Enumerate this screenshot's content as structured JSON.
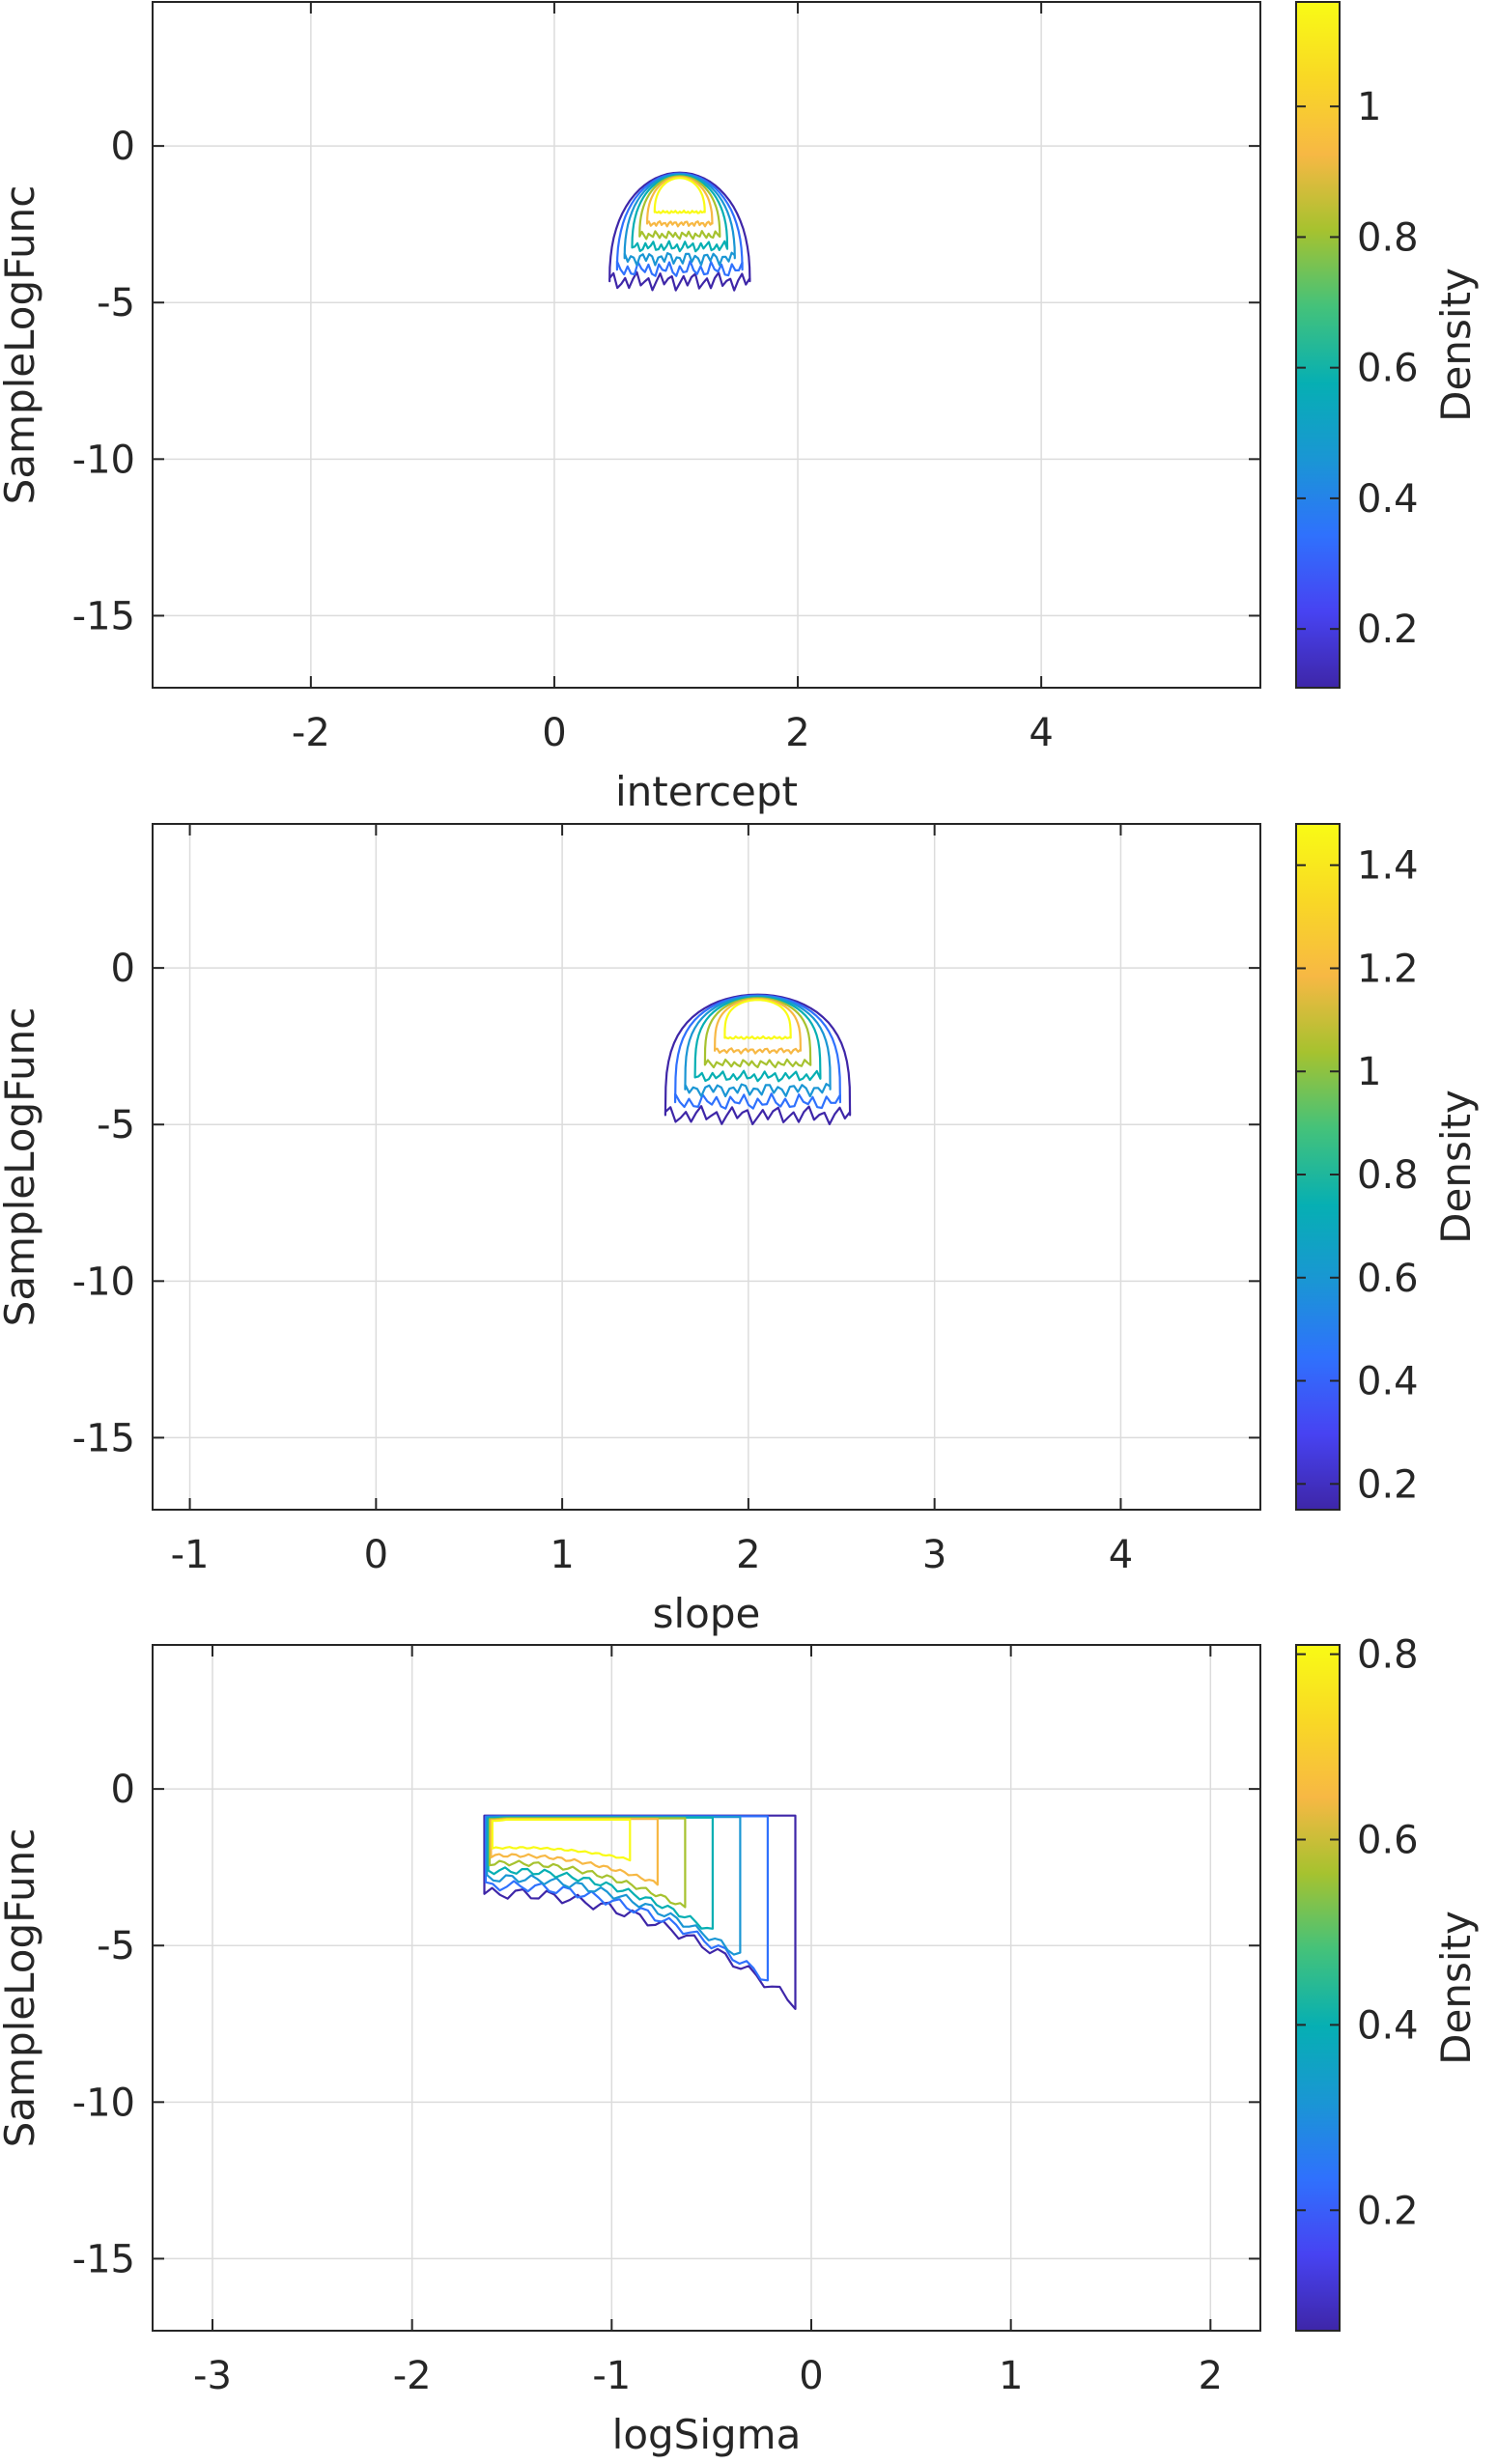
{
  "colormap": [
    "#3e26a8",
    "#4743f2",
    "#2f71fd",
    "#1a96d4",
    "#06afb3",
    "#44c27a",
    "#a6c22f",
    "#f7b844",
    "#f9d825",
    "#f9fb15"
  ],
  "chart_data": [
    {
      "type": "contour",
      "xlabel": "intercept",
      "ylabel": "SampleLogFunc",
      "xlim": [
        -3.3,
        5.8
      ],
      "ylim": [
        -17.3,
        4.6
      ],
      "xticks": [
        -2,
        0,
        2,
        4
      ],
      "xtick_labels": [
        "-2",
        "0",
        "2",
        "4"
      ],
      "yticks": [
        0,
        -5,
        -10,
        -15
      ],
      "ytick_labels": [
        "0",
        "-5",
        "-10",
        "-15"
      ],
      "grid": true,
      "colorbar": {
        "label": "Density",
        "range": [
          0.11,
          1.16
        ],
        "ticks": [
          0.2,
          0.4,
          0.6,
          0.8,
          1
        ],
        "tick_labels": [
          "0.2",
          "0.4",
          "0.6",
          "0.8",
          "1"
        ]
      },
      "density_peak": {
        "x": 1.03,
        "y": -1.15
      },
      "density_width": 0.36,
      "y_top": -0.85,
      "y_bottom": -4.5,
      "curvature": 0.35
    },
    {
      "type": "contour",
      "xlabel": "slope",
      "ylabel": "SampleLogFunc",
      "xlim": [
        -1.2,
        4.75
      ],
      "ylim": [
        -17.3,
        4.6
      ],
      "xticks": [
        -1,
        0,
        1,
        2,
        3,
        4
      ],
      "xtick_labels": [
        "-1",
        "0",
        "1",
        "2",
        "3",
        "4"
      ],
      "yticks": [
        0,
        -5,
        -10,
        -15
      ],
      "ytick_labels": [
        "0",
        "-5",
        "-10",
        "-15"
      ],
      "grid": true,
      "colorbar": {
        "label": "Density",
        "range": [
          0.15,
          1.48
        ],
        "ticks": [
          0.2,
          0.4,
          0.6,
          0.8,
          1,
          1.2,
          1.4
        ],
        "tick_labels": [
          "0.2",
          "0.4",
          "0.6",
          "0.8",
          "1",
          "1.2",
          "1.4"
        ]
      },
      "density_peak": {
        "x": 2.05,
        "y": -1.15
      },
      "density_width": 0.31,
      "y_top": -0.85,
      "y_bottom": -4.9,
      "curvature": 0.1
    },
    {
      "type": "contour",
      "xlabel": "logSigma",
      "ylabel": "SampleLogFunc",
      "xlim": [
        -3.3,
        2.25
      ],
      "ylim": [
        -17.3,
        4.6
      ],
      "xticks": [
        -3,
        -2,
        -1,
        0,
        1,
        2
      ],
      "xtick_labels": [
        "-3",
        "-2",
        "-1",
        "0",
        "1",
        "2"
      ],
      "yticks": [
        0,
        -5,
        -10,
        -15
      ],
      "ytick_labels": [
        "0",
        "-5",
        "-10",
        "-15"
      ],
      "grid": true,
      "colorbar": {
        "label": "Density",
        "range": [
          0.07,
          0.81
        ],
        "ticks": [
          0.2,
          0.4,
          0.6,
          0.8
        ],
        "tick_labels": [
          "0.2",
          "0.4",
          "0.6",
          "0.8"
        ]
      },
      "density_peak": {
        "x": -1.2,
        "y": -1.15
      },
      "skewed": true,
      "x_left": -1.72,
      "x_right": -0.08,
      "y_top": -0.85,
      "y_bottom": -6.2
    }
  ]
}
